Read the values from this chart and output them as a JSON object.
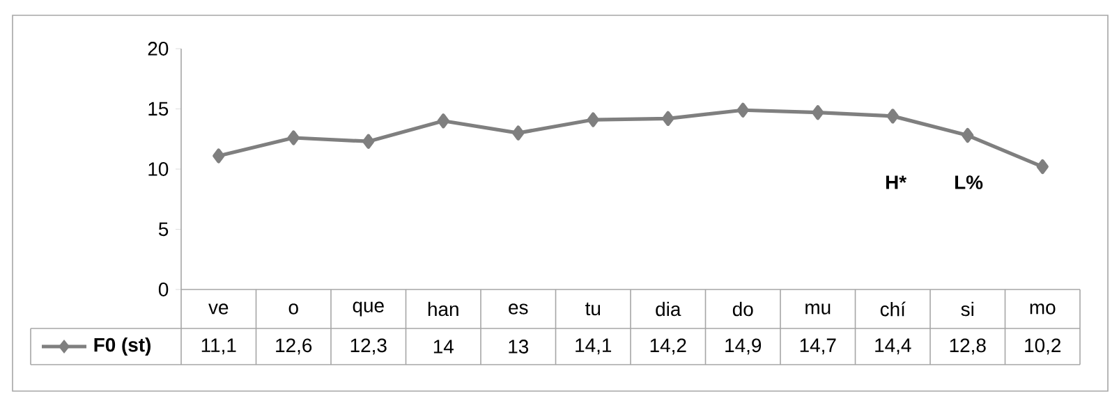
{
  "chart_data": {
    "type": "line",
    "categories": [
      "ve",
      "o",
      "que",
      "han",
      "es",
      "tu",
      "dia",
      "do",
      "mu",
      "chí",
      "si",
      "mo"
    ],
    "series": [
      {
        "name": "F0 (st)",
        "color": "#7f7f7f",
        "values": [
          11.1,
          12.6,
          12.3,
          14,
          13,
          14.1,
          14.2,
          14.9,
          14.7,
          14.4,
          12.8,
          10.2
        ],
        "value_labels": [
          "11,1",
          "12,6",
          "12,3",
          "14",
          "13",
          "14,1",
          "14,2",
          "14,9",
          "14,7",
          "14,4",
          "12,8",
          "10,2"
        ]
      }
    ],
    "ylim": [
      0,
      20
    ],
    "yticks": [
      0,
      5,
      10,
      15,
      20
    ],
    "marker": "diamond",
    "legend": "bottom",
    "grid": false,
    "annotations": [
      "H*",
      "L%"
    ]
  }
}
